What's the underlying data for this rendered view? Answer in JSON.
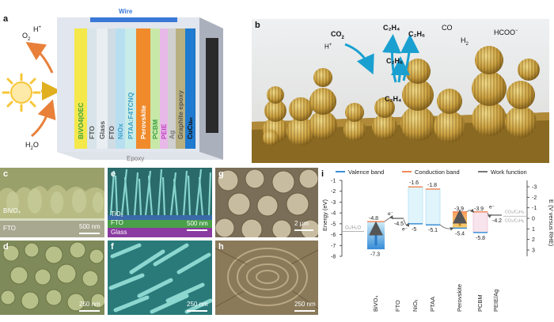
{
  "panel_a": {
    "label": "a",
    "wire": "Wire",
    "epoxy": "Epoxy",
    "o2": "O",
    "o2_sub": "2",
    "hplus": "H",
    "hplus_sup": "+",
    "h2o": "H",
    "h2o_sub": "2",
    "h2o_end": "O",
    "layers": [
      "BiVO4|OEC",
      "FTO",
      "Glass",
      "FTO",
      "NiOx",
      "PTAA:F4TCNQ",
      "Perovskite",
      "PCBM",
      "PEIE",
      "Ag",
      "Graphite epoxy",
      "CuCuₘ"
    ],
    "layer_colors": [
      "#f4e84a",
      "#d8e4ea",
      "#e8eef2",
      "#d0dce4",
      "#b8dff0",
      "#c8ece8",
      "#f08a2a",
      "#c8e8a8",
      "#e8b8e8",
      "#d0d0d0",
      "#b8b080",
      "#1f7ad0"
    ],
    "layer_text_colors": [
      "#3aa040",
      "#555",
      "#555",
      "#555",
      "#3aa0c8",
      "#3aa0c8",
      "#fff",
      "#3aa040",
      "#c040c0",
      "#777",
      "#555",
      "#111"
    ]
  },
  "panel_b": {
    "label": "b",
    "co2": "CO",
    "co2_sub": "2",
    "hplus": "H",
    "hplus_sup": "+",
    "c2h4_top": "C₂H₄",
    "c2h6_top": "C₂H₆",
    "c2h6_mid": "C₂H₆",
    "c2h4_bot": "C₂H₄",
    "co": "CO",
    "h2": "H",
    "h2_sub": "2",
    "hcoo": "HCOO",
    "hcoo_sup": "−"
  },
  "sem": {
    "c": {
      "label": "c",
      "scale": "500 nm",
      "tag1": "BiVO₄",
      "tag2": "FTO"
    },
    "d": {
      "label": "d",
      "scale": "250 nm"
    },
    "e": {
      "label": "e",
      "scale": "500 nm",
      "tag1": "TiO₂",
      "tag2": "FTO",
      "tag3": "Glass"
    },
    "f": {
      "label": "f",
      "scale": "250 nm"
    },
    "g": {
      "label": "g",
      "scale": "2 μm"
    },
    "h": {
      "label": "h",
      "scale": "250 nm"
    }
  },
  "panel_i": {
    "label": "i",
    "legend": [
      "Valence band",
      "Conduction band",
      "Work function"
    ],
    "legend_colors": [
      "#3a8fd8",
      "#f08a5a",
      "#777777"
    ],
    "ylabel_left": "Energy (eV)",
    "ylabel_right": "E (V versus RHE)",
    "left_ticks": [
      "-1",
      "-2",
      "-3",
      "-4",
      "-5",
      "-6",
      "-7",
      "-8"
    ],
    "right_ticks": [
      "-3",
      "-2",
      "-1",
      "0",
      "1",
      "2",
      "3"
    ],
    "xlabels": [
      "BiVO₄",
      "FTO",
      "NiOₓ",
      "PTAA",
      "Perovskite",
      "PCBM",
      "PEIE/Ag"
    ],
    "redox_left": "O₂/H₂O",
    "redox_right1": "CO₂/C₂H₄",
    "redox_right2": "CO₂/C₂H₆",
    "e_label": "e⁻",
    "values": {
      "bivo4_cb": "-4.8",
      "bivo4_vb": "-7.3",
      "fto": "-4.5",
      "nio_cb": "-1.6",
      "nio_vb": "-5",
      "ptaa_cb": "-1.8",
      "ptaa_vb": "-5.1",
      "pero_cb": "-3.9",
      "pero_vb": "-5.4",
      "pcbm_cb": "-3.9",
      "pcbm_vb": "-5.8",
      "peie": "-4.2"
    }
  }
}
